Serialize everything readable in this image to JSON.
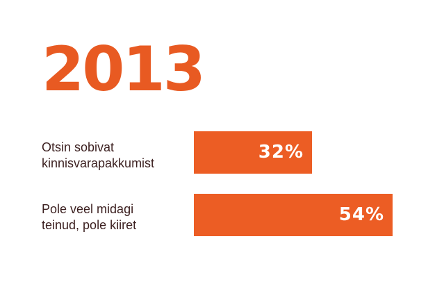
{
  "chart_data": {
    "type": "bar",
    "orientation": "horizontal",
    "title": "2013",
    "categories": [
      "Otsin sobivat kinnisvarapakkumist",
      "Pole veel midagi teinud, pole kiiret"
    ],
    "category_lines": [
      [
        "Otsin sobivat",
        "kinnisvarapakkumist"
      ],
      [
        "Pole veel midagi",
        "teinud, pole kiiret"
      ]
    ],
    "values": [
      32,
      54
    ],
    "value_labels": [
      "32%",
      "54%"
    ],
    "unit": "%",
    "grid": false,
    "colors": {
      "title": "#e85a22",
      "bar": "#ec5d24",
      "label": "#3b1f1f",
      "value_text": "#ffffff"
    }
  }
}
